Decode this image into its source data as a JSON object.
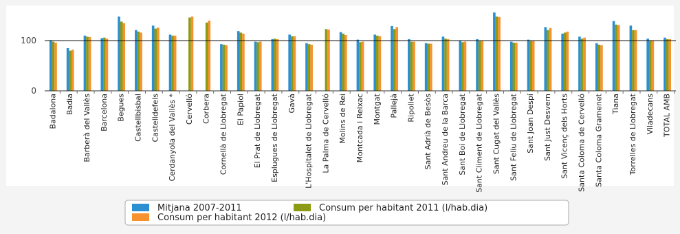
{
  "chart_data": {
    "type": "bar",
    "title": "",
    "xlabel": "",
    "ylabel": "",
    "ylim": [
      0,
      170
    ],
    "yticks": [
      0,
      100
    ],
    "reference_line": 100,
    "grid": false,
    "legend_position": "bottom-center",
    "categories": [
      "Badalona",
      "Badia",
      "Barberà del Vallès",
      "Barcelona",
      "Begues",
      "Castellbisbal",
      "Castelldefels",
      "Cerdanyola del Vallès *",
      "Cervelló",
      "Corbera",
      "Cornellà de Llobregat",
      "El Papiol",
      "El Prat de Llobregat",
      "Esplugues de Llobregat",
      "Gavà",
      "L'Hospitalet de Llobregat",
      "La Palma de Cervelló",
      "Molins de Rei",
      "Montcada i Reixac",
      "Montgat",
      "Pallejà",
      "Ripollet",
      "Sant Adrià de Besòs",
      "Sant Andreu de la Barca",
      "Sant Boi de Llobregat",
      "Sant Climent de Llobregat",
      "Sant Cugat del Vallès",
      "Sant Feliu de Llobregat",
      "Sant Joan Despí",
      "Sant Just Desvern",
      "Sant Vicenç dels Horts",
      "Santa Coloma de Cervelló",
      "Santa Coloma Gramenet",
      "Tiana",
      "Torrelles de Llobregat",
      "Viladecans",
      "TOTAL AMB"
    ],
    "series": [
      {
        "name": "Mitjana 2007-2011",
        "color": "#2b8fd1",
        "values": [
          101,
          85,
          110,
          105,
          148,
          121,
          130,
          112,
          null,
          null,
          93,
          119,
          98,
          103,
          112,
          95,
          null,
          117,
          102,
          112,
          129,
          103,
          95,
          108,
          100,
          103,
          156,
          98,
          102,
          127,
          114,
          108,
          95,
          139,
          130,
          104,
          106
        ]
      },
      {
        "name": "Consum per habitant 2011 (l/hab.dia)",
        "color": "#8c9a14",
        "values": [
          98,
          80,
          108,
          106,
          138,
          118,
          124,
          110,
          146,
          136,
          92,
          116,
          97,
          104,
          109,
          93,
          123,
          114,
          97,
          110,
          123,
          98,
          94,
          104,
          97,
          99,
          148,
          96,
          99,
          121,
          116,
          104,
          92,
          132,
          121,
          100,
          103
        ]
      },
      {
        "name": "Consum per habitant 2012 (l/hab.dia)",
        "color": "#f6932e",
        "values": [
          96,
          82,
          107,
          104,
          135,
          116,
          126,
          110,
          148,
          140,
          91,
          114,
          98,
          103,
          109,
          92,
          122,
          111,
          98,
          109,
          127,
          98,
          94,
          103,
          98,
          99,
          147,
          96,
          99,
          125,
          118,
          106,
          91,
          131,
          121,
          100,
          103
        ]
      }
    ]
  },
  "legend": {
    "items": [
      {
        "label": "Mitjana 2007-2011",
        "color": "#2b8fd1"
      },
      {
        "label": "Consum per habitant 2011 (l/hab.dia)",
        "color": "#8c9a14"
      },
      {
        "label": "Consum per habitant 2012 (l/hab.dia)",
        "color": "#f6932e"
      }
    ]
  }
}
